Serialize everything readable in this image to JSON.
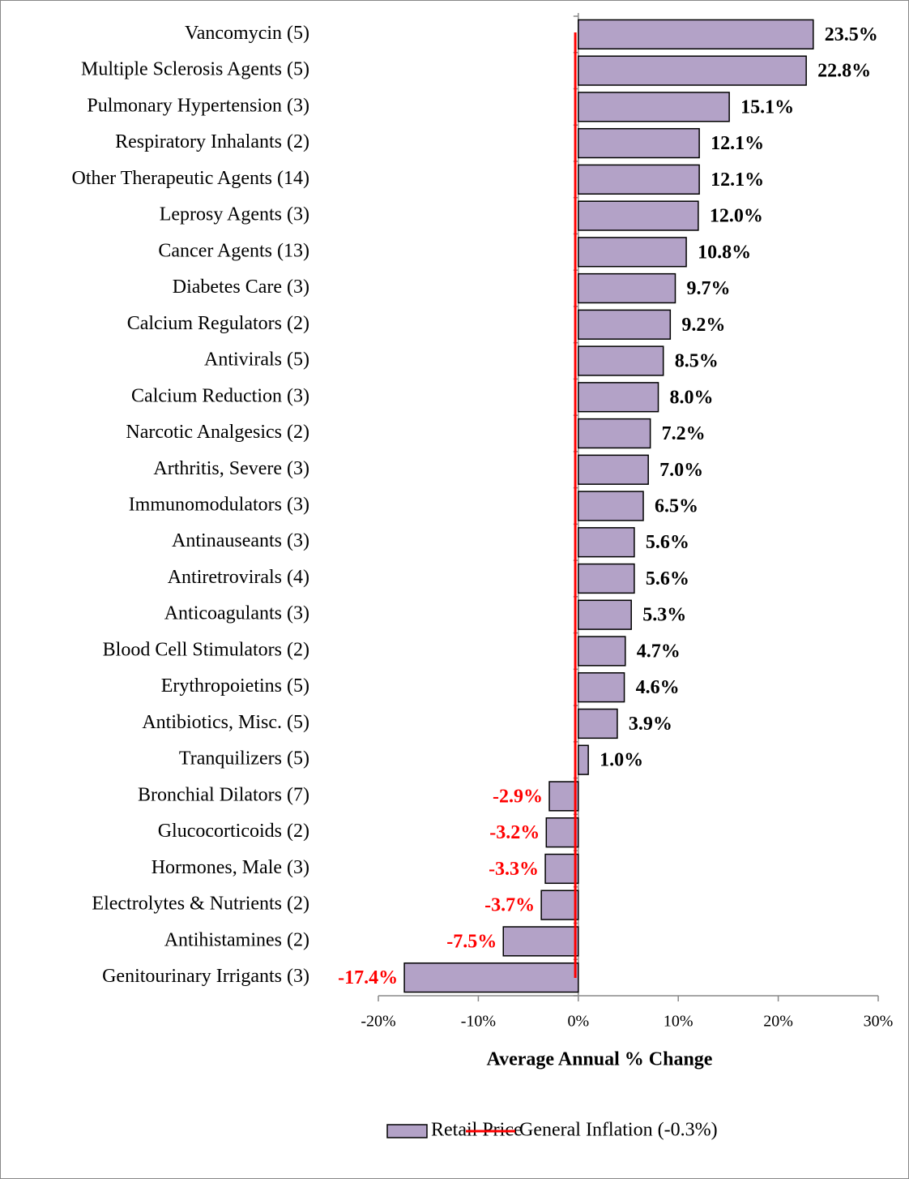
{
  "chart_data": {
    "type": "barh",
    "x_label": "Average Annual % Change",
    "categories": [
      "Vancomycin (5)",
      "Multiple Sclerosis Agents (5)",
      "Pulmonary Hypertension (3)",
      "Respiratory Inhalants (2)",
      "Other Therapeutic Agents (14)",
      "Leprosy Agents (3)",
      "Cancer Agents (13)",
      "Diabetes Care (3)",
      "Calcium Regulators (2)",
      "Antivirals (5)",
      "Calcium Reduction (3)",
      "Narcotic Analgesics (2)",
      "Arthritis, Severe (3)",
      "Immunomodulators (3)",
      "Antinauseants (3)",
      "Antiretrovirals (4)",
      "Anticoagulants (3)",
      "Blood Cell Stimulators (2)",
      "Erythropoietins (5)",
      "Antibiotics, Misc. (5)",
      "Tranquilizers (5)",
      "Bronchial Dilators (7)",
      "Glucocorticoids (2)",
      "Hormones, Male (3)",
      "Electrolytes & Nutrients (2)",
      "Antihistamines (2)",
      "Genitourinary Irrigants (3)"
    ],
    "series": [
      {
        "name": "Retail Price",
        "color": "#b3a2c7",
        "values": [
          23.5,
          22.8,
          15.1,
          12.1,
          12.1,
          12.0,
          10.8,
          9.7,
          9.2,
          8.5,
          8.0,
          7.2,
          7.0,
          6.5,
          5.6,
          5.6,
          5.3,
          4.7,
          4.6,
          3.9,
          1.0,
          -2.9,
          -3.2,
          -3.3,
          -3.7,
          -7.5,
          -17.4
        ],
        "value_labels": [
          "23.5%",
          "22.8%",
          "15.1%",
          "12.1%",
          "12.1%",
          "12.0%",
          "10.8%",
          "9.7%",
          "9.2%",
          "8.5%",
          "8.0%",
          "7.2%",
          "7.0%",
          "6.5%",
          "5.6%",
          "5.6%",
          "5.3%",
          "4.7%",
          "4.6%",
          "3.9%",
          "1.0%",
          "-2.9%",
          "-3.2%",
          "-3.3%",
          "-3.7%",
          "-7.5%",
          "-17.4%"
        ]
      }
    ],
    "label_color": "#000000",
    "negative_label_color": "#ff0000",
    "reference_line": {
      "name": "General Inflation (-0.3%)",
      "value": -0.3,
      "color": "#ff0000"
    },
    "xlim": [
      -20,
      30
    ],
    "xticks": [
      {
        "value": -20,
        "label": "-20%"
      },
      {
        "value": -10,
        "label": "-10%"
      },
      {
        "value": 0,
        "label": "0%"
      },
      {
        "value": 10,
        "label": "10%"
      },
      {
        "value": 20,
        "label": "20%"
      },
      {
        "value": 30,
        "label": "30%"
      }
    ],
    "legend": "bottom"
  }
}
